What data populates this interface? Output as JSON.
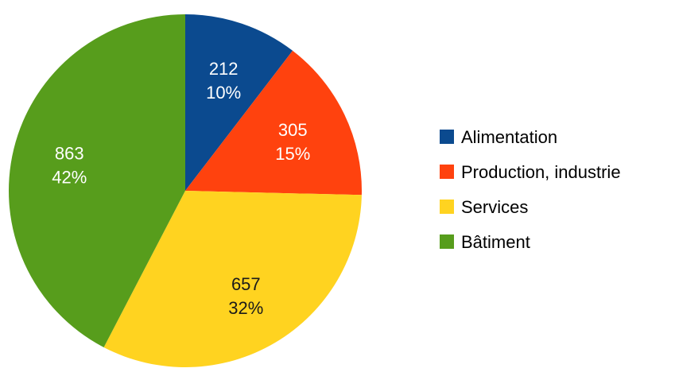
{
  "chart_data": {
    "type": "pie",
    "title": "",
    "slices": [
      {
        "label": "Alimentation",
        "value": 212,
        "percent_label": "10%",
        "color": "#0b4a8f",
        "label_color": "#ffffff"
      },
      {
        "label": "Production, industrie",
        "value": 305,
        "percent_label": "15%",
        "color": "#ff420e",
        "label_color": "#ffffff"
      },
      {
        "label": "Services",
        "value": 657,
        "percent_label": "32%",
        "color": "#ffd320",
        "label_color": "#1a1a1a"
      },
      {
        "label": "Bâtiment",
        "value": 863,
        "percent_label": "42%",
        "color": "#579d1c",
        "label_color": "#ffffff"
      }
    ],
    "start_angle_deg": 0,
    "direction": "clockwise",
    "legend": {
      "position": "right"
    }
  }
}
